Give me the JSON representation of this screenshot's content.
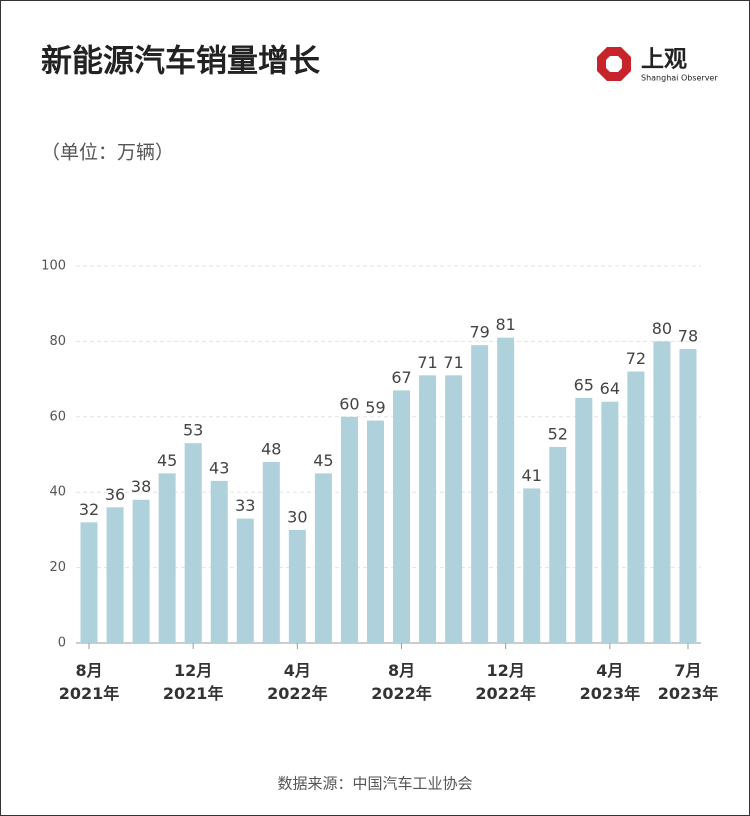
{
  "chart_data": {
    "type": "bar",
    "title": "新能源汽车销量增长",
    "unit": "（单位：万辆）",
    "source": "数据来源：中国汽车工业协会",
    "logo": {
      "name": "上观",
      "subtitle": "Shanghai Observer"
    },
    "categories": [
      "8月\n2021年",
      null,
      null,
      null,
      "12月\n2021年",
      null,
      null,
      null,
      "4月\n2022年",
      null,
      null,
      null,
      "8月\n2022年",
      null,
      null,
      null,
      "12月\n2022年",
      null,
      null,
      null,
      "4月\n2023年",
      null,
      null,
      "7月\n2023年"
    ],
    "values": [
      32,
      36,
      38,
      45,
      53,
      43,
      33,
      48,
      30,
      45,
      60,
      59,
      67,
      71,
      71,
      79,
      81,
      41,
      52,
      65,
      64,
      72,
      80,
      78
    ],
    "color": "#aed1dc",
    "ylim": [
      0,
      100
    ],
    "yticks": [
      0,
      20,
      40,
      60,
      80,
      100
    ],
    "grid": true
  }
}
